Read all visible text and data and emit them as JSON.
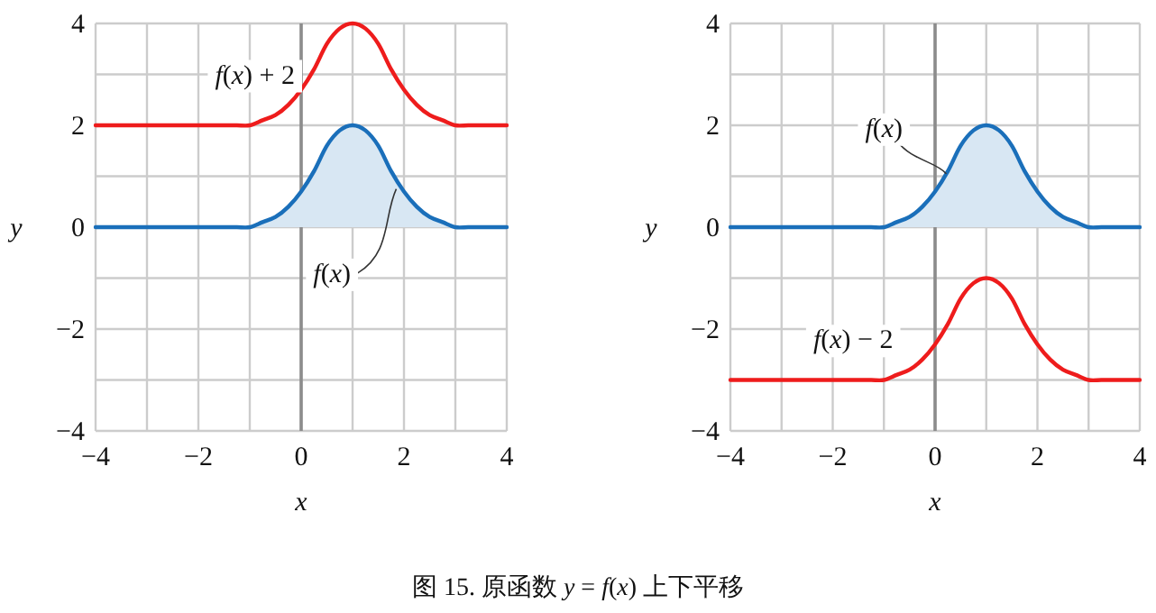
{
  "chart_data": [
    {
      "type": "line",
      "xlabel": "x",
      "ylabel": "y",
      "grid": true,
      "xlim": [
        -4,
        4
      ],
      "ylim": [
        -4,
        4
      ],
      "xticks": [
        {
          "value": -4,
          "label": "−4"
        },
        {
          "value": -3,
          "label": null
        },
        {
          "value": -2,
          "label": "−2"
        },
        {
          "value": -1,
          "label": null
        },
        0,
        {
          "value": 1,
          "label": null
        },
        2,
        {
          "value": 3,
          "label": null
        },
        4
      ],
      "yticks": [
        {
          "value": -4,
          "label": "−4"
        },
        {
          "value": -3,
          "label": null
        },
        {
          "value": -2,
          "label": "−2"
        },
        {
          "value": -1,
          "label": null
        },
        0,
        {
          "value": 1,
          "label": null
        },
        2,
        {
          "value": 3,
          "label": null
        },
        4
      ],
      "x": [
        -4,
        -3.5,
        -3,
        -2.5,
        -2,
        -1.5,
        -1.25,
        -1,
        -0.75,
        -0.5,
        -0.25,
        0,
        0.25,
        0.5,
        0.75,
        1,
        1.25,
        1.5,
        1.75,
        2,
        2.25,
        2.5,
        2.75,
        3,
        3.25,
        3.5,
        4
      ],
      "ref_lines": [
        {
          "axis": "x",
          "value": 0,
          "color": "#8c8c8c"
        }
      ],
      "series": [
        {
          "name": "*f*(*x*) + 2",
          "color": "#ee1c1c",
          "values": [
            2,
            2,
            2,
            2,
            2,
            2,
            2,
            2,
            2.1,
            2.2,
            2.4,
            2.7,
            3.1,
            3.6,
            3.9,
            4,
            3.9,
            3.6,
            3.1,
            2.7,
            2.4,
            2.2,
            2.1,
            2,
            2,
            2,
            2
          ]
        },
        {
          "name": "*f*(*x*)",
          "type": "area",
          "color": "#1a6fba",
          "values": [
            0,
            0,
            0,
            0,
            0,
            0,
            0,
            0,
            0.1,
            0.2,
            0.4,
            0.7,
            1.1,
            1.6,
            1.9,
            2,
            1.9,
            1.6,
            1.1,
            0.7,
            0.4,
            0.2,
            0.1,
            0,
            0,
            0,
            0
          ]
        }
      ],
      "annotations": [
        "图 15. 原函数 *y* = *f*(*x*) 上下平移"
      ]
    },
    {
      "type": "line",
      "xlabel": "x",
      "ylabel": "y",
      "grid": true,
      "xlim": [
        -4,
        4
      ],
      "ylim": [
        -4,
        4
      ],
      "xticks": [
        {
          "value": -4,
          "label": "−4"
        },
        {
          "value": -3,
          "label": null
        },
        {
          "value": -2,
          "label": "−2"
        },
        {
          "value": -1,
          "label": null
        },
        0,
        {
          "value": 1,
          "label": null
        },
        2,
        {
          "value": 3,
          "label": null
        },
        4
      ],
      "yticks": [
        {
          "value": -4,
          "label": "−4"
        },
        {
          "value": -3,
          "label": null
        },
        {
          "value": -2,
          "label": "−2"
        },
        {
          "value": -1,
          "label": null
        },
        0,
        {
          "value": 1,
          "label": null
        },
        2,
        {
          "value": 3,
          "label": null
        },
        4
      ],
      "x": [
        -4,
        -3.5,
        -3,
        -2.5,
        -2,
        -1.5,
        -1.25,
        -1,
        -0.75,
        -0.5,
        -0.25,
        0,
        0.25,
        0.5,
        0.75,
        1,
        1.25,
        1.5,
        1.75,
        2,
        2.25,
        2.5,
        2.75,
        3,
        3.25,
        3.5,
        4
      ],
      "ref_lines": [
        {
          "axis": "x",
          "value": 0,
          "color": "#8c8c8c"
        }
      ],
      "series": [
        {
          "name": "*f*(*x*)",
          "type": "area",
          "color": "#1a6fba",
          "values": [
            0,
            0,
            0,
            0,
            0,
            0,
            0,
            0,
            0.1,
            0.2,
            0.4,
            0.7,
            1.1,
            1.6,
            1.9,
            2,
            1.9,
            1.6,
            1.1,
            0.7,
            0.4,
            0.2,
            0.1,
            0,
            0,
            0,
            0
          ]
        },
        {
          "name": "*f*(*x*) − 2",
          "color": "#ee1c1c",
          "values": [
            -3,
            -3,
            -3,
            -3,
            -3,
            -3,
            -3,
            -3,
            -2.9,
            -2.8,
            -2.6,
            -2.3,
            -1.9,
            -1.4,
            -1.1,
            -1,
            -1.1,
            -1.4,
            -1.9,
            -2.3,
            -2.6,
            -2.8,
            -2.9,
            -3,
            -3,
            -3,
            -3
          ]
        }
      ]
    }
  ]
}
